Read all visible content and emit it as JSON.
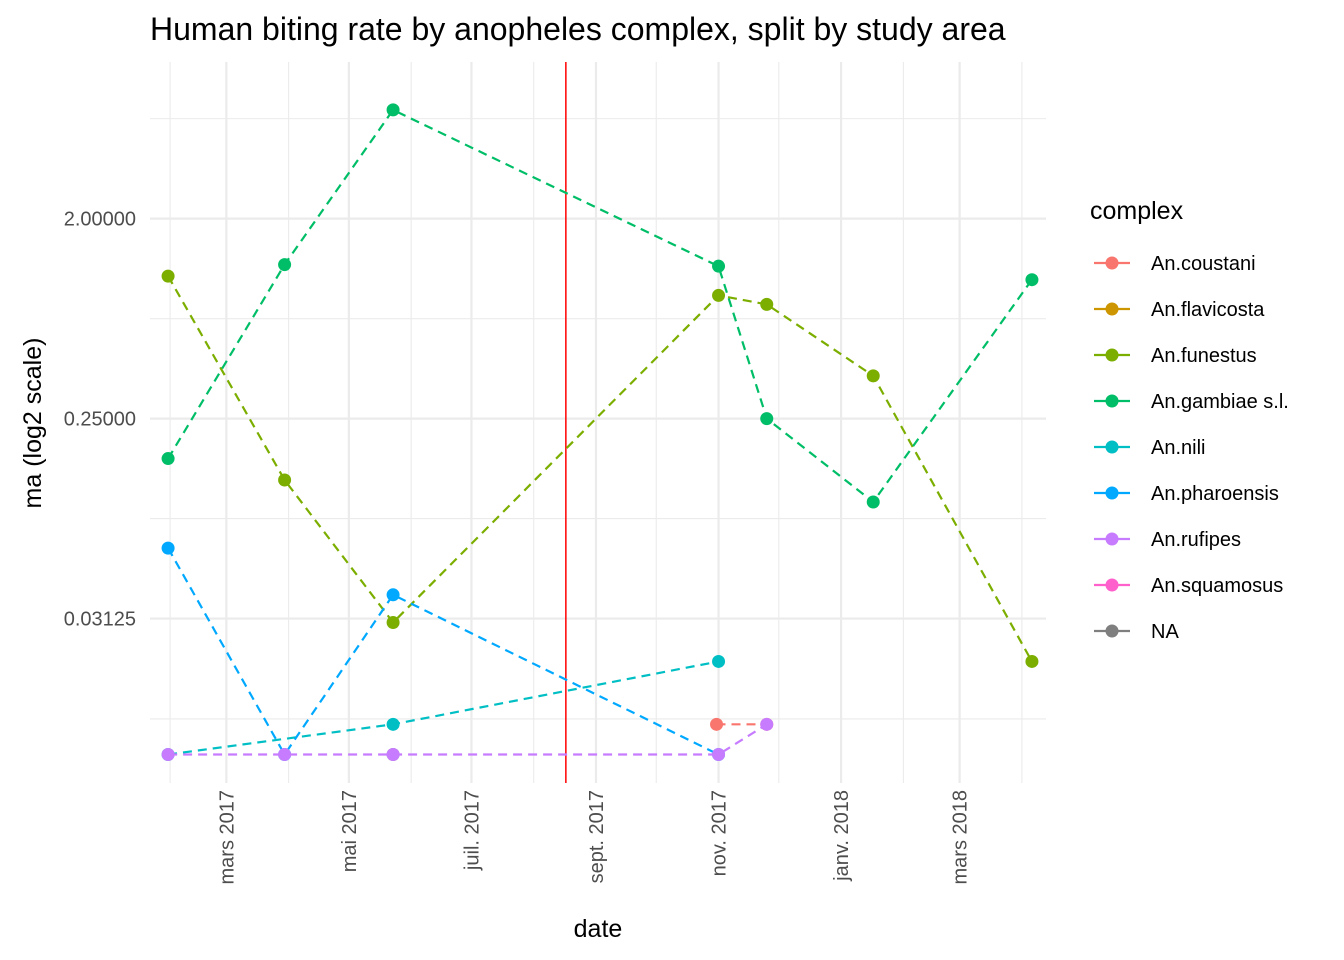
{
  "chart_data": {
    "type": "line",
    "title": "Human biting rate by anopheles complex, split by study area",
    "xlabel": "date",
    "ylabel": "ma (log2 scale)",
    "y_scale": "log2",
    "grid": true,
    "legend_position": "right",
    "legend_title": "complex",
    "x_tick_labels": [
      "mars 2017",
      "mai 2017",
      "juil. 2017",
      "sept. 2017",
      "nov. 2017",
      "janv. 2018",
      "mars 2018"
    ],
    "x_ticks": [
      "2017-03-01",
      "2017-05-01",
      "2017-07-01",
      "2017-09-01",
      "2017-11-01",
      "2018-01-01",
      "2018-03-01"
    ],
    "x_minor_ticks": [
      "2017-02-01",
      "2017-04-01",
      "2017-06-01",
      "2017-08-01",
      "2017-10-01",
      "2017-12-01",
      "2018-02-01",
      "2018-04-01"
    ],
    "y_tick_labels": [
      "0.03125",
      "0.25000",
      "2.00000"
    ],
    "y_ticks": [
      0.03125,
      0.25,
      2.0
    ],
    "y_minor_ticks": [
      0.011,
      0.0884,
      0.707,
      5.66
    ],
    "xlim": [
      "2017-01-22",
      "2018-04-13"
    ],
    "ylim": [
      0.00565,
      10.2
    ],
    "vline": {
      "x": "2017-08-17",
      "color": "#ff0000"
    },
    "series": [
      {
        "name": "An.coustani",
        "color": "#F8766D",
        "points": [
          {
            "x": "2017-10-31",
            "y": 0.0104
          },
          {
            "x": "2017-11-25",
            "y": 0.0104
          }
        ]
      },
      {
        "name": "An.flavicosta",
        "color": "#CD9600",
        "points": []
      },
      {
        "name": "An.funestus",
        "color": "#7CAE00",
        "points": [
          {
            "x": "2017-01-31",
            "y": 1.1
          },
          {
            "x": "2017-03-30",
            "y": 0.132
          },
          {
            "x": "2017-05-23",
            "y": 0.03
          },
          {
            "x": "2017-11-01",
            "y": 0.9
          },
          {
            "x": "2017-11-25",
            "y": 0.82
          },
          {
            "x": "2018-01-17",
            "y": 0.39
          },
          {
            "x": "2018-04-06",
            "y": 0.02
          }
        ]
      },
      {
        "name": "An.gambiae s.l.",
        "color": "#00BE67",
        "points": [
          {
            "x": "2017-01-31",
            "y": 0.165
          },
          {
            "x": "2017-03-30",
            "y": 1.24
          },
          {
            "x": "2017-05-23",
            "y": 6.2
          },
          {
            "x": "2017-11-01",
            "y": 1.22
          },
          {
            "x": "2017-11-25",
            "y": 0.25
          },
          {
            "x": "2018-01-17",
            "y": 0.105
          },
          {
            "x": "2018-04-06",
            "y": 1.06
          }
        ]
      },
      {
        "name": "An.nili",
        "color": "#00BFC4",
        "points": [
          {
            "x": "2017-01-31",
            "y": 0.0076
          },
          {
            "x": "2017-05-23",
            "y": 0.0104
          },
          {
            "x": "2017-11-01",
            "y": 0.02
          }
        ]
      },
      {
        "name": "An.pharoensis",
        "color": "#00A9FF",
        "points": [
          {
            "x": "2017-01-31",
            "y": 0.065
          },
          {
            "x": "2017-03-30",
            "y": 0.0076
          },
          {
            "x": "2017-05-23",
            "y": 0.04
          },
          {
            "x": "2017-11-01",
            "y": 0.0076
          }
        ]
      },
      {
        "name": "An.rufipes",
        "color": "#C77CFF",
        "points": [
          {
            "x": "2017-01-31",
            "y": 0.0076
          },
          {
            "x": "2017-03-30",
            "y": 0.0076
          },
          {
            "x": "2017-05-23",
            "y": 0.0076
          },
          {
            "x": "2017-11-01",
            "y": 0.0076
          },
          {
            "x": "2017-11-25",
            "y": 0.0104
          }
        ]
      },
      {
        "name": "An.squamosus",
        "color": "#FF61CC",
        "points": []
      },
      {
        "name": "NA",
        "color": "#7F7F7F",
        "points": [
          {
            "x": "2017-05-23",
            "y": 0.0076
          }
        ]
      }
    ],
    "draw_order": [
      "An.coustani",
      "An.flavicosta",
      "An.funestus",
      "An.gambiae s.l.",
      "An.nili",
      "NA",
      "An.pharoensis",
      "An.rufipes",
      "An.squamosus"
    ]
  }
}
